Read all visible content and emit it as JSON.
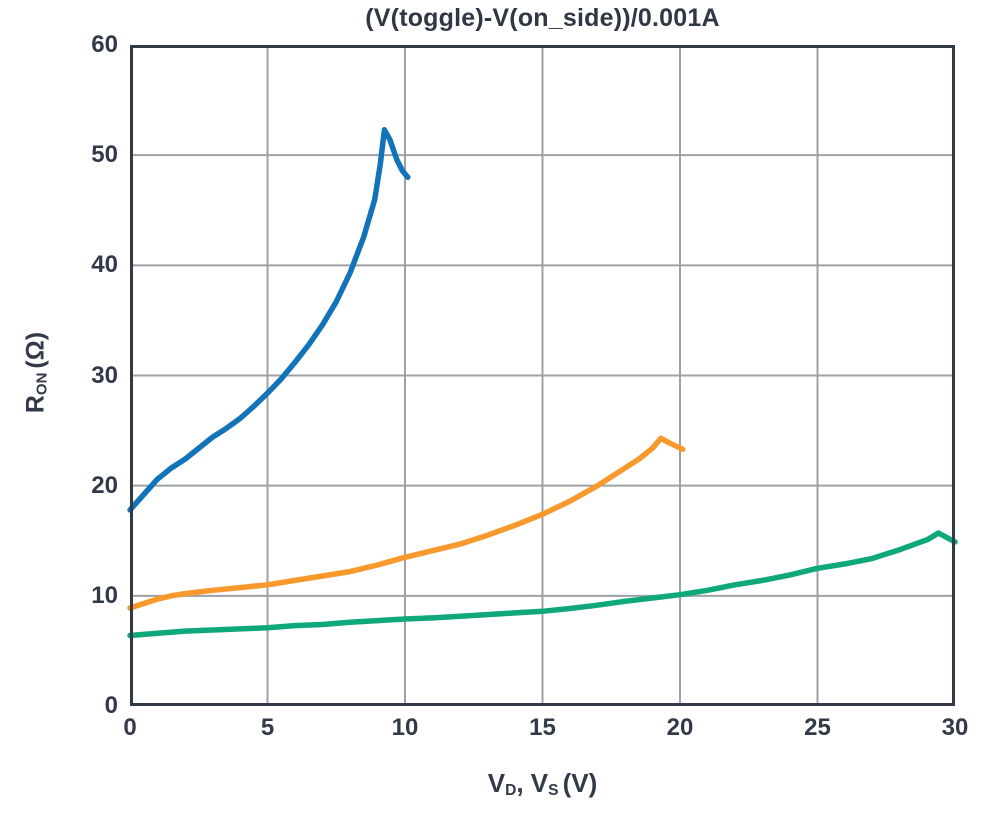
{
  "title": "(V(toggle)-V(on_side))/0.001A",
  "colors": {
    "blue": "#1273b9",
    "orange": "#f8992d",
    "green": "#0ea87b",
    "axis": "#323949",
    "grid": "#9ea0a5",
    "text": "#323949"
  },
  "axis_labels": {
    "y_main": "R",
    "y_sub": "ON",
    "y_unit": "(Ω)",
    "x_main1": "V",
    "x_sub1": "D",
    "x_mid": ", V",
    "x_sub2": "S",
    "x_unit": "(V)"
  },
  "chart_data": {
    "type": "line",
    "title": "(V(toggle)-V(on_side))/0.001A",
    "xlabel": "V_D, V_S (V)",
    "ylabel": "R_ON (Ω)",
    "xlim": [
      0,
      30
    ],
    "ylim": [
      0,
      60
    ],
    "x_ticks": [
      0,
      5,
      10,
      15,
      20,
      25,
      30
    ],
    "y_ticks": [
      0,
      10,
      20,
      30,
      40,
      50,
      60
    ],
    "grid": true,
    "legend": false,
    "series": [
      {
        "name": "blue",
        "color": "#1273b9",
        "points": [
          [
            0,
            17.8
          ],
          [
            0.5,
            19.2
          ],
          [
            1,
            20.6
          ],
          [
            1.5,
            21.6
          ],
          [
            2,
            22.4
          ],
          [
            2.5,
            23.4
          ],
          [
            3,
            24.4
          ],
          [
            3.5,
            25.2
          ],
          [
            4,
            26.1
          ],
          [
            4.5,
            27.2
          ],
          [
            5,
            28.4
          ],
          [
            5.5,
            29.7
          ],
          [
            6,
            31.2
          ],
          [
            6.5,
            32.8
          ],
          [
            7,
            34.6
          ],
          [
            7.5,
            36.7
          ],
          [
            8,
            39.3
          ],
          [
            8.5,
            42.6
          ],
          [
            8.9,
            46.0
          ],
          [
            9.1,
            49.2
          ],
          [
            9.25,
            52.3
          ],
          [
            9.45,
            51.4
          ],
          [
            9.7,
            49.6
          ],
          [
            9.9,
            48.6
          ],
          [
            10.1,
            48.0
          ]
        ]
      },
      {
        "name": "orange",
        "color": "#f8992d",
        "points": [
          [
            0,
            8.9
          ],
          [
            0.5,
            9.3
          ],
          [
            1,
            9.7
          ],
          [
            1.5,
            10.0
          ],
          [
            2,
            10.2
          ],
          [
            3,
            10.5
          ],
          [
            4,
            10.75
          ],
          [
            5,
            11.0
          ],
          [
            6,
            11.4
          ],
          [
            7,
            11.8
          ],
          [
            8,
            12.2
          ],
          [
            9,
            12.8
          ],
          [
            10,
            13.5
          ],
          [
            11,
            14.1
          ],
          [
            12,
            14.7
          ],
          [
            13,
            15.5
          ],
          [
            14,
            16.4
          ],
          [
            15,
            17.4
          ],
          [
            16,
            18.6
          ],
          [
            17,
            20.0
          ],
          [
            18,
            21.6
          ],
          [
            18.5,
            22.4
          ],
          [
            19,
            23.4
          ],
          [
            19.3,
            24.3
          ],
          [
            19.6,
            23.9
          ],
          [
            20.1,
            23.3
          ]
        ]
      },
      {
        "name": "green",
        "color": "#0ea87b",
        "points": [
          [
            0,
            6.4
          ],
          [
            1,
            6.6
          ],
          [
            2,
            6.8
          ],
          [
            3,
            6.9
          ],
          [
            4,
            7.0
          ],
          [
            5,
            7.1
          ],
          [
            6,
            7.3
          ],
          [
            7,
            7.4
          ],
          [
            8,
            7.6
          ],
          [
            9,
            7.75
          ],
          [
            10,
            7.9
          ],
          [
            11,
            8.0
          ],
          [
            12,
            8.15
          ],
          [
            13,
            8.3
          ],
          [
            14,
            8.45
          ],
          [
            15,
            8.6
          ],
          [
            16,
            8.85
          ],
          [
            17,
            9.15
          ],
          [
            18,
            9.5
          ],
          [
            19,
            9.8
          ],
          [
            20,
            10.1
          ],
          [
            21,
            10.5
          ],
          [
            22,
            11.0
          ],
          [
            23,
            11.4
          ],
          [
            24,
            11.9
          ],
          [
            25,
            12.5
          ],
          [
            26,
            12.9
          ],
          [
            27,
            13.4
          ],
          [
            28,
            14.2
          ],
          [
            29,
            15.1
          ],
          [
            29.4,
            15.7
          ],
          [
            30,
            14.9
          ]
        ]
      }
    ]
  }
}
